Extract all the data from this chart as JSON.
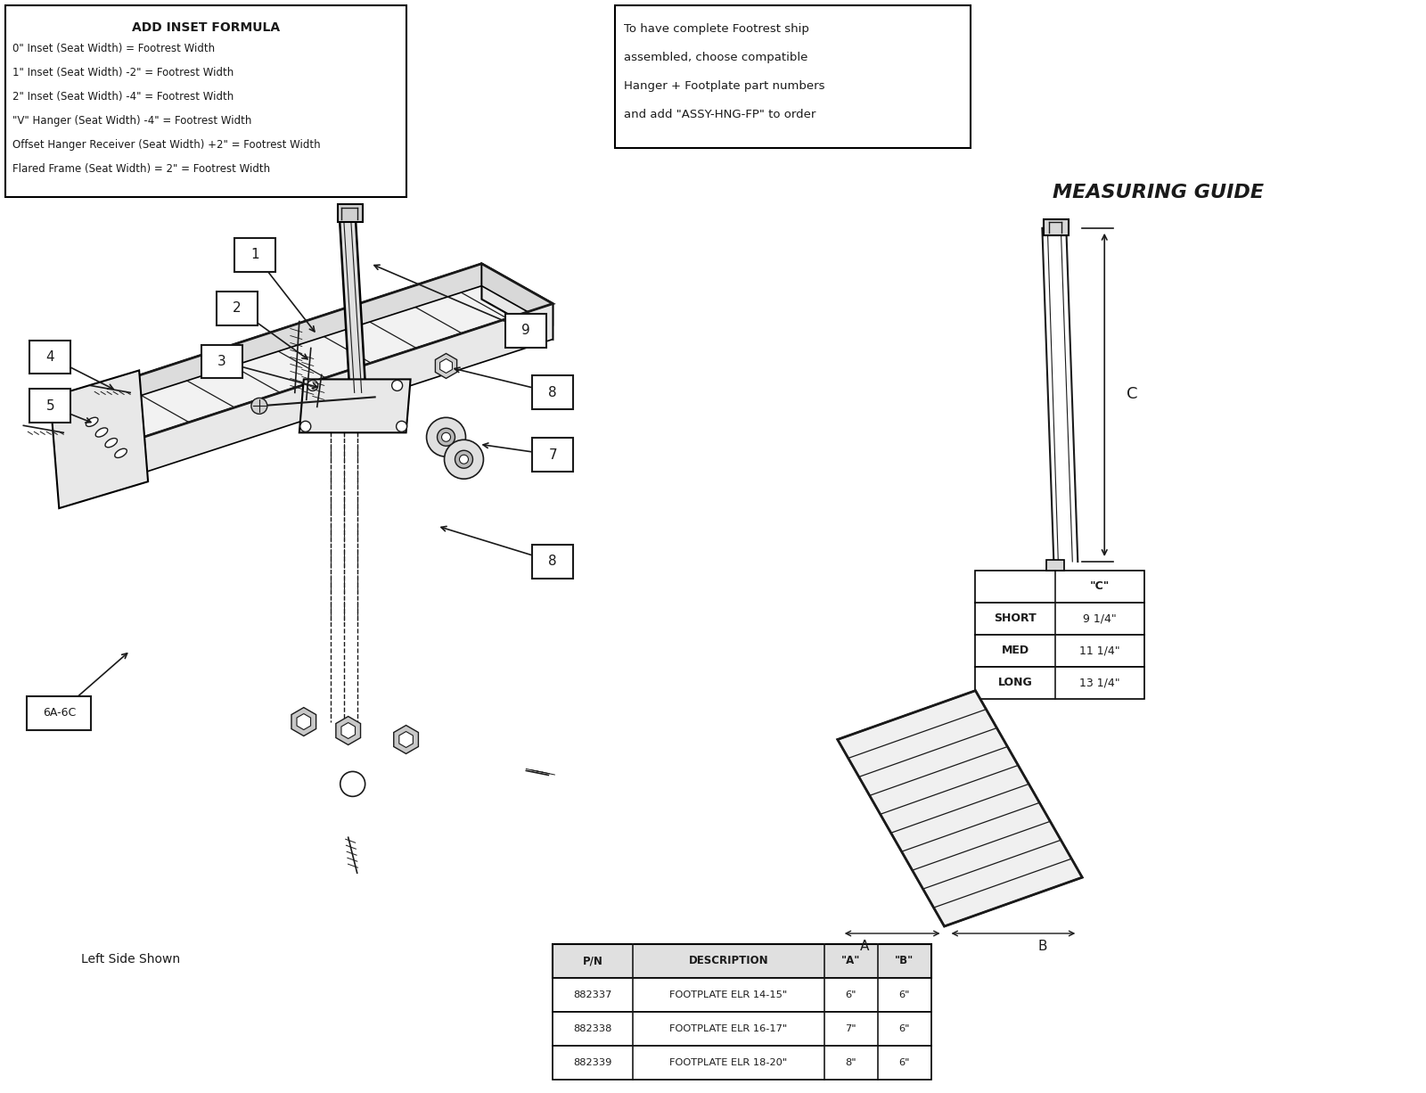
{
  "bg_color": "#ffffff",
  "line_color": "#1a1a1a",
  "fig_width": 16.0,
  "fig_height": 12.26,
  "inset_box": {
    "title": "ADD INSET FORMULA",
    "lines": [
      "0\" Inset (Seat Width) = Footrest Width",
      "1\" Inset (Seat Width) -2\" = Footrest Width",
      "2\" Inset (Seat Width) -4\" = Footrest Width",
      "\"V\" Hanger (Seat Width) -4\" = Footrest Width",
      "Offset Hanger Receiver (Seat Width) +2\" = Footrest Width",
      "Flared Frame (Seat Width) = 2\" = Footrest Width"
    ]
  },
  "ship_box": {
    "lines": [
      "To have complete Footrest ship",
      "assembled, choose compatible",
      "Hanger + Footplate part numbers",
      "and add \"ASSY-HNG-FP\" to order"
    ]
  },
  "measuring_guide_title": "MEASURING GUIDE",
  "c_table": {
    "headers": [
      "",
      "\"C\""
    ],
    "rows": [
      [
        "SHORT",
        "9 1/4\""
      ],
      [
        "MED",
        "11 1/4\""
      ],
      [
        "LONG",
        "13 1/4\""
      ]
    ]
  },
  "fp_table": {
    "headers": [
      "P/N",
      "DESCRIPTION",
      "\"A\"",
      "\"B\""
    ],
    "rows": [
      [
        "882337",
        "FOOTPLATE ELR 14-15\"",
        "6\"",
        "6\""
      ],
      [
        "882338",
        "FOOTPLATE ELR 16-17\"",
        "7\"",
        "6\""
      ],
      [
        "882339",
        "FOOTPLATE ELR 18-20\"",
        "8\"",
        "6\""
      ]
    ]
  },
  "left_side_label": "Left Side Shown"
}
